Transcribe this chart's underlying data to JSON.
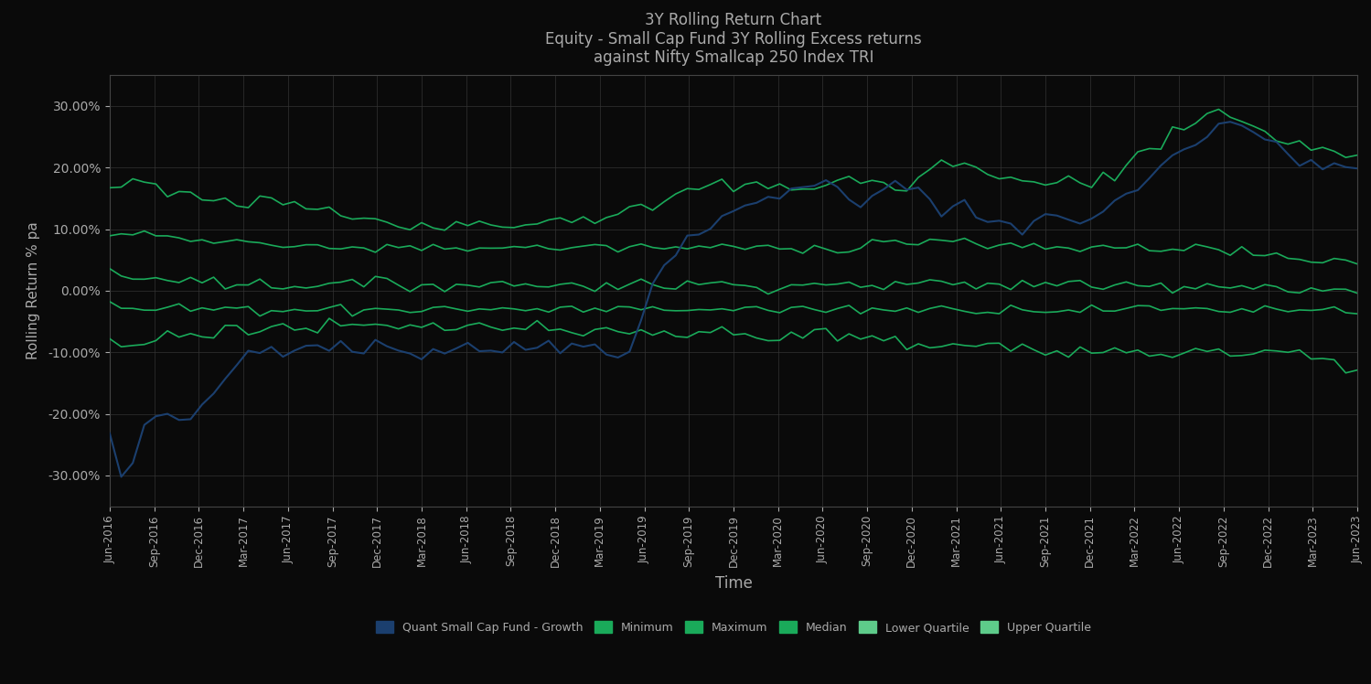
{
  "title_line1": "3Y Rolling Return Chart",
  "title_line2": "Equity - Small Cap Fund 3Y Rolling Excess returns",
  "title_line3": "against Nifty Smallcap 250 Index TRI",
  "xlabel": "Time",
  "ylabel": "Rolling Return % pa",
  "ylim": [
    -0.35,
    0.35
  ],
  "bg_color": "#0a0a0a",
  "plot_bg_color": "#0a0a0a",
  "text_color": "#aaaaaa",
  "fund_color": "#1b3f6e",
  "green_dark": "#1aaa5a",
  "green_mid": "#1aaa5a",
  "green_light": "#1aaa5a",
  "xtick_labels": [
    "Jun-2016",
    "Sep-2016",
    "Dec-2016",
    "Mar-2017",
    "Jun-2017",
    "Sep-2017",
    "Dec-2017",
    "Mar-2018",
    "Jun-2018",
    "Sep-2018",
    "Dec-2018",
    "Mar-2019",
    "Jun-2019",
    "Sep-2019",
    "Dec-2019",
    "Mar-2020",
    "Jun-2020",
    "Sep-2020",
    "Dec-2020",
    "Mar-2021",
    "Jun-2021",
    "Sep-2021",
    "Dec-2021",
    "Mar-2022",
    "Jun-2022",
    "Sep-2022",
    "Dec-2022",
    "Mar-2023",
    "Jun-2023"
  ],
  "ytick_labels": [
    "-30.00%",
    "-20.00%",
    "-10.00%",
    "0.00%",
    "10.00%",
    "20.00%",
    "30.00%"
  ],
  "ytick_vals": [
    -0.3,
    -0.2,
    -0.1,
    0.0,
    0.1,
    0.2,
    0.3
  ],
  "legend_labels": [
    "Quant Small Cap Fund - Growth",
    "Minimum",
    "Maximum",
    "Median",
    "Lower Quartile",
    "Upper Quartile"
  ],
  "fund_data": [
    -0.24,
    -0.3,
    -0.28,
    -0.22,
    -0.2,
    -0.2,
    -0.21,
    -0.2,
    -0.19,
    -0.17,
    -0.14,
    -0.12,
    -0.1,
    -0.1,
    -0.09,
    -0.1,
    -0.1,
    -0.09,
    -0.09,
    -0.09,
    -0.09,
    -0.1,
    -0.1,
    -0.09,
    -0.09,
    -0.09,
    -0.1,
    -0.1,
    -0.1,
    -0.1,
    -0.09,
    -0.09,
    -0.09,
    -0.1,
    -0.09,
    -0.08,
    -0.09,
    -0.1,
    -0.09,
    -0.1,
    -0.09,
    -0.09,
    -0.09,
    -0.1,
    -0.1,
    -0.09,
    -0.05,
    0.0,
    0.04,
    0.06,
    0.08,
    0.09,
    0.1,
    0.12,
    0.13,
    0.14,
    0.15,
    0.15,
    0.15,
    0.16,
    0.17,
    0.18,
    0.18,
    0.16,
    0.15,
    0.14,
    0.16,
    0.17,
    0.18,
    0.17,
    0.16,
    0.15,
    0.12,
    0.13,
    0.14,
    0.12,
    0.11,
    0.11,
    0.11,
    0.1,
    0.11,
    0.12,
    0.12,
    0.12,
    0.11,
    0.12,
    0.13,
    0.14,
    0.15,
    0.16,
    0.18,
    0.2,
    0.22,
    0.23,
    0.24,
    0.25,
    0.26,
    0.27,
    0.27,
    0.26,
    0.25,
    0.24,
    0.22,
    0.21,
    0.21,
    0.2,
    0.2,
    0.2,
    0.19
  ],
  "maximum_data": [
    0.17,
    0.17,
    0.18,
    0.17,
    0.17,
    0.16,
    0.16,
    0.16,
    0.15,
    0.15,
    0.14,
    0.14,
    0.14,
    0.15,
    0.15,
    0.14,
    0.14,
    0.13,
    0.13,
    0.13,
    0.12,
    0.12,
    0.12,
    0.12,
    0.11,
    0.11,
    0.11,
    0.11,
    0.11,
    0.11,
    0.11,
    0.11,
    0.11,
    0.11,
    0.11,
    0.11,
    0.11,
    0.11,
    0.12,
    0.12,
    0.12,
    0.12,
    0.12,
    0.12,
    0.12,
    0.13,
    0.13,
    0.14,
    0.14,
    0.15,
    0.16,
    0.17,
    0.17,
    0.17,
    0.17,
    0.17,
    0.17,
    0.17,
    0.17,
    0.17,
    0.17,
    0.17,
    0.17,
    0.18,
    0.18,
    0.18,
    0.18,
    0.17,
    0.16,
    0.17,
    0.18,
    0.2,
    0.21,
    0.2,
    0.2,
    0.2,
    0.2,
    0.19,
    0.18,
    0.18,
    0.17,
    0.17,
    0.18,
    0.18,
    0.18,
    0.18,
    0.18,
    0.19,
    0.2,
    0.22,
    0.23,
    0.24,
    0.26,
    0.27,
    0.28,
    0.29,
    0.29,
    0.28,
    0.27,
    0.27,
    0.26,
    0.25,
    0.24,
    0.24,
    0.23,
    0.23,
    0.23,
    0.22,
    0.22
  ],
  "upper_q_data": [
    0.09,
    0.09,
    0.09,
    0.09,
    0.09,
    0.09,
    0.09,
    0.08,
    0.08,
    0.08,
    0.08,
    0.08,
    0.08,
    0.08,
    0.07,
    0.07,
    0.07,
    0.07,
    0.07,
    0.07,
    0.07,
    0.07,
    0.07,
    0.07,
    0.07,
    0.07,
    0.07,
    0.07,
    0.07,
    0.07,
    0.07,
    0.07,
    0.07,
    0.07,
    0.07,
    0.07,
    0.07,
    0.07,
    0.07,
    0.07,
    0.07,
    0.07,
    0.07,
    0.07,
    0.07,
    0.07,
    0.07,
    0.07,
    0.07,
    0.07,
    0.07,
    0.07,
    0.07,
    0.07,
    0.07,
    0.07,
    0.07,
    0.07,
    0.07,
    0.07,
    0.07,
    0.07,
    0.07,
    0.07,
    0.07,
    0.07,
    0.08,
    0.08,
    0.08,
    0.08,
    0.08,
    0.08,
    0.08,
    0.08,
    0.08,
    0.08,
    0.07,
    0.07,
    0.07,
    0.07,
    0.07,
    0.07,
    0.07,
    0.07,
    0.07,
    0.07,
    0.07,
    0.07,
    0.07,
    0.07,
    0.07,
    0.07,
    0.07,
    0.07,
    0.07,
    0.07,
    0.07,
    0.06,
    0.06,
    0.06,
    0.06,
    0.06,
    0.05,
    0.05,
    0.05,
    0.05,
    0.05,
    0.05,
    0.05
  ],
  "median_data": [
    0.03,
    0.02,
    0.02,
    0.02,
    0.02,
    0.02,
    0.02,
    0.02,
    0.02,
    0.02,
    0.01,
    0.01,
    0.01,
    0.01,
    0.01,
    0.01,
    0.01,
    0.01,
    0.01,
    0.01,
    0.01,
    0.01,
    0.01,
    0.01,
    0.01,
    0.01,
    0.01,
    0.01,
    0.01,
    0.01,
    0.01,
    0.01,
    0.01,
    0.01,
    0.01,
    0.01,
    0.01,
    0.01,
    0.01,
    0.01,
    0.01,
    0.01,
    0.01,
    0.01,
    0.01,
    0.01,
    0.01,
    0.01,
    0.01,
    0.01,
    0.01,
    0.01,
    0.01,
    0.01,
    0.01,
    0.01,
    0.01,
    0.01,
    0.01,
    0.01,
    0.01,
    0.01,
    0.01,
    0.01,
    0.01,
    0.01,
    0.01,
    0.01,
    0.01,
    0.01,
    0.01,
    0.01,
    0.01,
    0.01,
    0.01,
    0.01,
    0.01,
    0.01,
    0.01,
    0.01,
    0.01,
    0.01,
    0.01,
    0.01,
    0.01,
    0.01,
    0.01,
    0.01,
    0.01,
    0.01,
    0.01,
    0.01,
    0.01,
    0.01,
    0.01,
    0.01,
    0.01,
    0.01,
    0.01,
    0.01,
    0.01,
    0.01,
    0.0,
    0.0,
    0.0,
    0.0,
    0.0,
    0.0,
    0.0
  ],
  "lower_q_data": [
    -0.02,
    -0.03,
    -0.03,
    -0.03,
    -0.03,
    -0.03,
    -0.03,
    -0.03,
    -0.03,
    -0.03,
    -0.03,
    -0.03,
    -0.03,
    -0.03,
    -0.03,
    -0.03,
    -0.03,
    -0.03,
    -0.03,
    -0.03,
    -0.03,
    -0.03,
    -0.03,
    -0.03,
    -0.03,
    -0.03,
    -0.03,
    -0.03,
    -0.03,
    -0.03,
    -0.03,
    -0.03,
    -0.03,
    -0.03,
    -0.03,
    -0.03,
    -0.03,
    -0.03,
    -0.03,
    -0.03,
    -0.03,
    -0.03,
    -0.03,
    -0.03,
    -0.03,
    -0.03,
    -0.03,
    -0.03,
    -0.03,
    -0.03,
    -0.03,
    -0.03,
    -0.03,
    -0.03,
    -0.03,
    -0.03,
    -0.03,
    -0.03,
    -0.03,
    -0.03,
    -0.03,
    -0.03,
    -0.03,
    -0.03,
    -0.03,
    -0.03,
    -0.03,
    -0.03,
    -0.03,
    -0.03,
    -0.03,
    -0.03,
    -0.03,
    -0.03,
    -0.03,
    -0.03,
    -0.03,
    -0.03,
    -0.03,
    -0.03,
    -0.03,
    -0.03,
    -0.03,
    -0.03,
    -0.03,
    -0.03,
    -0.03,
    -0.03,
    -0.03,
    -0.03,
    -0.03,
    -0.03,
    -0.03,
    -0.03,
    -0.03,
    -0.03,
    -0.03,
    -0.03,
    -0.03,
    -0.03,
    -0.03,
    -0.03,
    -0.03,
    -0.03,
    -0.03,
    -0.03,
    -0.03,
    -0.03,
    -0.03
  ],
  "minimum_data": [
    -0.08,
    -0.09,
    -0.09,
    -0.09,
    -0.08,
    -0.07,
    -0.07,
    -0.07,
    -0.07,
    -0.07,
    -0.06,
    -0.06,
    -0.06,
    -0.06,
    -0.06,
    -0.06,
    -0.06,
    -0.06,
    -0.06,
    -0.06,
    -0.06,
    -0.06,
    -0.06,
    -0.06,
    -0.06,
    -0.06,
    -0.06,
    -0.06,
    -0.06,
    -0.06,
    -0.06,
    -0.06,
    -0.06,
    -0.06,
    -0.06,
    -0.06,
    -0.06,
    -0.06,
    -0.07,
    -0.07,
    -0.07,
    -0.07,
    -0.07,
    -0.07,
    -0.07,
    -0.07,
    -0.07,
    -0.07,
    -0.07,
    -0.07,
    -0.07,
    -0.07,
    -0.07,
    -0.07,
    -0.07,
    -0.07,
    -0.07,
    -0.07,
    -0.07,
    -0.07,
    -0.07,
    -0.07,
    -0.07,
    -0.08,
    -0.08,
    -0.08,
    -0.08,
    -0.08,
    -0.08,
    -0.09,
    -0.09,
    -0.09,
    -0.09,
    -0.09,
    -0.09,
    -0.09,
    -0.09,
    -0.09,
    -0.09,
    -0.09,
    -0.1,
    -0.1,
    -0.1,
    -0.1,
    -0.1,
    -0.1,
    -0.1,
    -0.1,
    -0.1,
    -0.1,
    -0.1,
    -0.1,
    -0.1,
    -0.1,
    -0.1,
    -0.1,
    -0.1,
    -0.1,
    -0.1,
    -0.1,
    -0.1,
    -0.1,
    -0.1,
    -0.1,
    -0.11,
    -0.11,
    -0.12,
    -0.13,
    -0.13
  ]
}
